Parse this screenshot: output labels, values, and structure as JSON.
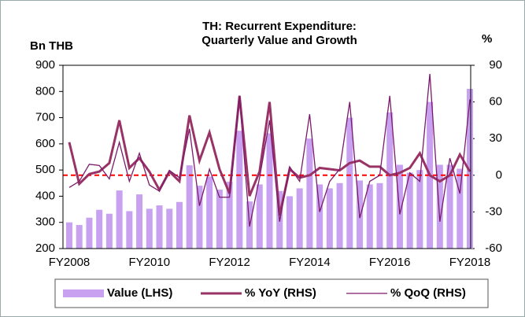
{
  "chart_data": {
    "type": "bar-line",
    "title": [
      "TH: Recurrent Expenditure:",
      "Quarterly Value and Growth"
    ],
    "y_label": "Bn THB",
    "y2_label": "%",
    "categories": [
      "FY2008",
      null,
      null,
      null,
      null,
      null,
      null,
      null,
      "FY2010",
      null,
      null,
      null,
      null,
      null,
      null,
      null,
      "FY2012",
      null,
      null,
      null,
      null,
      null,
      null,
      null,
      "FY2014",
      null,
      null,
      null,
      null,
      null,
      null,
      null,
      "FY2016",
      null,
      null,
      null,
      null,
      null,
      null,
      null,
      "FY2018"
    ],
    "ylim": [
      200,
      900
    ],
    "yticks": [
      200,
      300,
      400,
      500,
      600,
      700,
      800,
      900
    ],
    "y2lim": [
      -60,
      90
    ],
    "y2ticks": [
      -60,
      -30,
      0,
      30,
      60,
      90
    ],
    "reference_line": {
      "value": 0,
      "axis": "y2",
      "color": "#ff0000",
      "dashed": true
    },
    "legend": "bottom",
    "series": [
      {
        "name": "Value (LHS)",
        "type": "bar",
        "color": "#c8a2f0",
        "values": [
          300,
          290,
          318,
          348,
          333,
          422,
          343,
          407,
          352,
          365,
          352,
          378,
          518,
          440,
          475,
          425,
          455,
          650,
          380,
          445,
          640,
          420,
          400,
          430,
          620,
          445,
          430,
          450,
          700,
          460,
          445,
          450,
          720,
          520,
          490,
          500,
          760,
          520,
          520,
          505,
          810
        ]
      },
      {
        "name": "% YoY (RHS)",
        "type": "line",
        "axis": "y2",
        "color": "#993366",
        "width": 3,
        "values": [
          27,
          -7,
          1,
          3,
          10,
          45,
          6,
          14,
          3,
          -12,
          3,
          -5,
          49,
          12,
          35,
          5,
          -15,
          65,
          -17,
          3,
          60,
          -33,
          5,
          -2,
          0,
          6,
          5,
          4,
          10,
          12,
          7,
          7,
          0,
          2,
          6,
          18,
          0,
          -5,
          0,
          17,
          3
        ]
      },
      {
        "name": "% QoQ (RHS)",
        "type": "line",
        "axis": "y2",
        "color": "#7b1a6b",
        "width": 1.3,
        "values": [
          -10,
          -5,
          9,
          8,
          -3,
          27,
          -5,
          18,
          -8,
          -13,
          4,
          -2,
          38,
          -25,
          5,
          -18,
          -18,
          65,
          -42,
          -2,
          45,
          -38,
          7,
          -5,
          50,
          -30,
          -5,
          5,
          60,
          -35,
          -5,
          0,
          65,
          -32,
          2,
          -5,
          83,
          -38,
          14,
          -15,
          62
        ]
      }
    ]
  }
}
